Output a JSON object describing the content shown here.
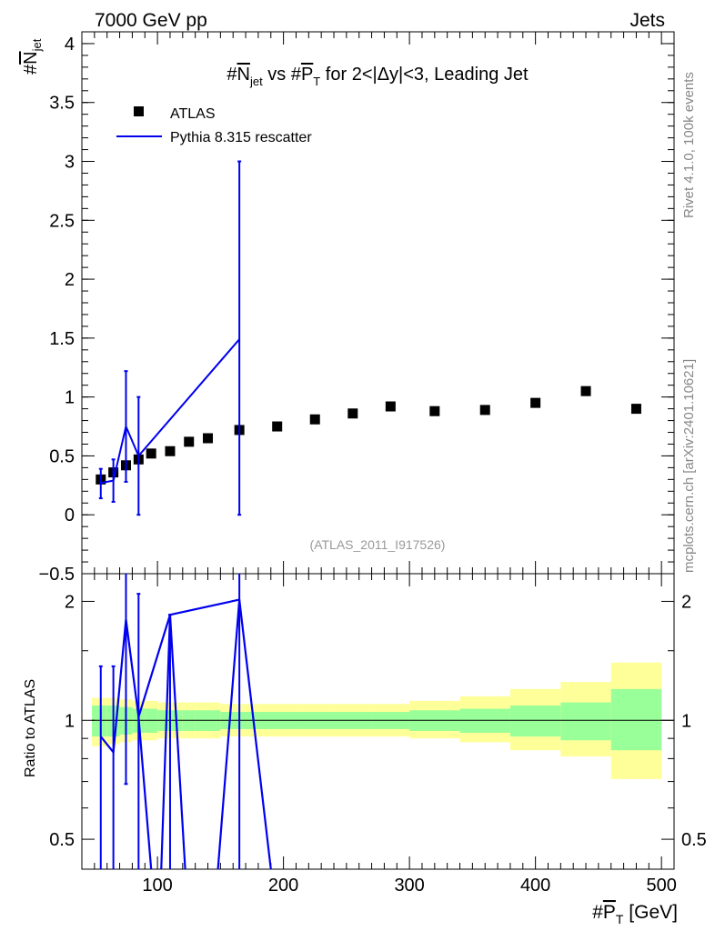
{
  "header": {
    "left": "7000 GeV pp",
    "right": "Jets"
  },
  "side": {
    "rivet": "Rivet 4.1.0,  100k events",
    "mcplots": "mcplots.cern.ch [arXiv:2401.10621]"
  },
  "watermark": "(ATLAS_2011_I917526)",
  "colors": {
    "atlas": "#000000",
    "pythia": "#0000ee",
    "band_inner": "#99ff99",
    "band_outer": "#ffff99"
  },
  "chart_data": [
    {
      "type": "scatter",
      "title": {
        "pre": "#",
        "n": "N",
        "nsub": "jet",
        "mid": " vs #",
        "p": "P",
        "psub": "T",
        "post": " for 2<|Δy|<3, Leading Jet"
      },
      "ylabel": {
        "pre": "#",
        "n": "N",
        "sub": "jet"
      },
      "xlim": [
        40,
        510
      ],
      "ylim": [
        -0.5,
        4.1
      ],
      "yticks": [
        -0.5,
        0,
        0.5,
        1,
        1.5,
        2,
        2.5,
        3,
        3.5,
        4
      ],
      "ytick_labels": [
        "−0.5",
        "0",
        "0.5",
        "1",
        "1.5",
        "2",
        "2.5",
        "3",
        "3.5",
        "4"
      ],
      "legend": {
        "position": "top-left",
        "atlas": "ATLAS",
        "pythia": "Pythia 8.315 rescatter"
      },
      "atlas": {
        "x": [
          55,
          65,
          75,
          85,
          95,
          110,
          125,
          140,
          165,
          195,
          225,
          255,
          285,
          320,
          360,
          400,
          440,
          480
        ],
        "y": [
          0.3,
          0.36,
          0.42,
          0.47,
          0.52,
          0.54,
          0.62,
          0.65,
          0.72,
          0.75,
          0.81,
          0.86,
          0.92,
          0.88,
          0.89,
          0.95,
          1.05,
          0.9
        ],
        "xerr": [
          5,
          5,
          5,
          5,
          5,
          10,
          5,
          10,
          15,
          15,
          15,
          15,
          15,
          20,
          20,
          20,
          20,
          20
        ]
      },
      "pythia": {
        "x": [
          55,
          65,
          75,
          85,
          165
        ],
        "y": [
          0.27,
          0.29,
          0.75,
          0.5,
          1.49
        ],
        "err_lo": [
          0.13,
          0.18,
          0.47,
          0.5,
          1.49
        ],
        "err_hi": [
          0.12,
          0.18,
          0.47,
          0.5,
          1.51
        ]
      }
    },
    {
      "type": "line",
      "ylabel": "Ratio to ATLAS",
      "xlabel": {
        "pre": "#",
        "p": "P",
        "sub": "T",
        "post": " [GeV]"
      },
      "xlim": [
        40,
        510
      ],
      "ylim": [
        0.42,
        2.35
      ],
      "yscale": "log",
      "yticks": [
        0.5,
        1,
        2
      ],
      "ytick_labels": [
        "0.5",
        "1",
        "2"
      ],
      "xticks": [
        100,
        200,
        300,
        400,
        500
      ],
      "xtick_labels": [
        "100",
        "200",
        "300",
        "400",
        "500"
      ],
      "bands": {
        "edges": [
          48,
          60,
          70,
          80,
          90,
          100,
          120,
          130,
          150,
          180,
          210,
          240,
          270,
          300,
          340,
          380,
          420,
          460,
          500
        ],
        "inner_lo": [
          0.91,
          0.91,
          0.92,
          0.93,
          0.93,
          0.94,
          0.94,
          0.94,
          0.95,
          0.95,
          0.95,
          0.95,
          0.95,
          0.94,
          0.93,
          0.91,
          0.89,
          0.84
        ],
        "inner_hi": [
          1.09,
          1.09,
          1.08,
          1.07,
          1.07,
          1.06,
          1.06,
          1.06,
          1.05,
          1.05,
          1.05,
          1.05,
          1.05,
          1.06,
          1.07,
          1.09,
          1.11,
          1.2
        ],
        "outer_lo": [
          0.86,
          0.87,
          0.88,
          0.89,
          0.89,
          0.9,
          0.9,
          0.9,
          0.91,
          0.91,
          0.91,
          0.91,
          0.91,
          0.9,
          0.88,
          0.84,
          0.81,
          0.71
        ],
        "outer_hi": [
          1.14,
          1.14,
          1.13,
          1.12,
          1.12,
          1.11,
          1.11,
          1.11,
          1.1,
          1.1,
          1.1,
          1.1,
          1.1,
          1.12,
          1.15,
          1.2,
          1.25,
          1.4
        ]
      },
      "pythia_line": {
        "x": [
          55,
          65,
          75,
          85,
          110,
          165
        ],
        "y": [
          0.91,
          0.83,
          1.8,
          1.02,
          1.85,
          2.02
        ]
      },
      "pythia_drops": [
        {
          "x": [
            85,
            95
          ],
          "y": [
            1.02,
            0.42
          ]
        },
        {
          "x": [
            110,
            103
          ],
          "y": [
            1.85,
            0.42
          ]
        },
        {
          "x": [
            110,
            122
          ],
          "y": [
            1.85,
            0.42
          ]
        },
        {
          "x": [
            165,
            148
          ],
          "y": [
            2.02,
            0.42
          ]
        },
        {
          "x": [
            165,
            190
          ],
          "y": [
            2.02,
            0.42
          ]
        }
      ],
      "pythia_err": {
        "x": [
          55,
          65,
          75,
          85,
          110,
          165
        ],
        "lo": [
          0.42,
          0.42,
          0.69,
          0.42,
          0.42,
          0.42
        ],
        "hi": [
          1.37,
          1.37,
          2.35,
          2.09,
          1.85,
          2.35
        ]
      }
    }
  ]
}
